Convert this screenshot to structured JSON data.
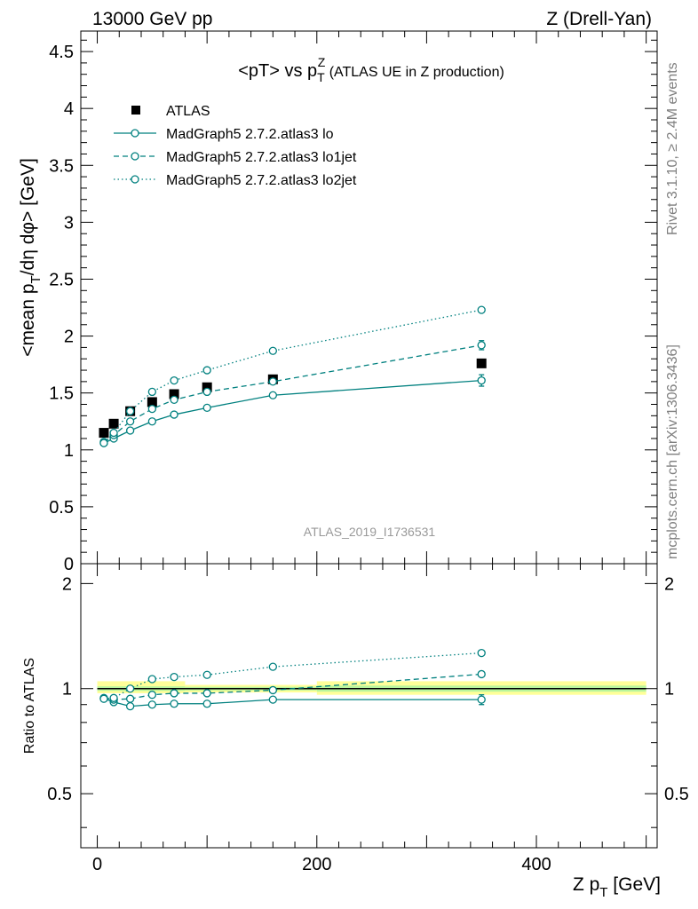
{
  "header": {
    "left": "13000 GeV pp",
    "right": "Z (Drell-Yan)"
  },
  "side_labels": {
    "rivet": "Rivet 3.1.10, ≥ 2.4M events",
    "mcplots": "mcplots.cern.ch [arXiv:1306.3436]"
  },
  "analysis_id": "ATLAS_2019_I1736531",
  "chart_data": [
    {
      "type": "scatter",
      "panel": "main",
      "title_parts": {
        "main": "<pT> vs p",
        "sub": "T",
        "sup": "Z",
        "suffix": " (ATLAS UE in Z production)"
      },
      "ylabel_parts": {
        "a": "<mean p",
        "sub": "T",
        "b": "/dη dφ> [GeV]"
      },
      "xlim": [
        -15,
        510
      ],
      "ylim": [
        0,
        4.68
      ],
      "y_ticks": [
        0,
        0.5,
        1,
        1.5,
        2,
        2.5,
        3,
        3.5,
        4,
        4.5
      ],
      "y_tick_labels": [
        "0",
        "0.5",
        "1",
        "1.5",
        "2",
        "2.5",
        "3",
        "3.5",
        "4",
        "4.5"
      ],
      "legend_position": "top-left",
      "series": [
        {
          "name": "ATLAS",
          "style": "data",
          "color": "#000000",
          "x": [
            6,
            15,
            30,
            50,
            70,
            100,
            160,
            350
          ],
          "y": [
            1.15,
            1.23,
            1.34,
            1.42,
            1.49,
            1.55,
            1.62,
            1.76
          ]
        },
        {
          "name": "MadGraph5 2.7.2.atlas3 lo",
          "style": "solid",
          "color": "#00807f",
          "x": [
            6,
            15,
            30,
            50,
            70,
            100,
            160,
            350
          ],
          "y": [
            1.06,
            1.1,
            1.17,
            1.25,
            1.31,
            1.37,
            1.48,
            1.61
          ],
          "err": [
            0.02,
            0.02,
            0.02,
            0.02,
            0.02,
            0.02,
            0.02,
            0.05
          ]
        },
        {
          "name": "MadGraph5 2.7.2.atlas3 lo1jet",
          "style": "dashed",
          "color": "#00807f",
          "x": [
            6,
            15,
            30,
            50,
            70,
            100,
            160,
            350
          ],
          "y": [
            1.07,
            1.13,
            1.25,
            1.36,
            1.44,
            1.51,
            1.6,
            1.92
          ],
          "err": [
            0.02,
            0.02,
            0.02,
            0.02,
            0.02,
            0.02,
            0.02,
            0.04
          ]
        },
        {
          "name": "MadGraph5 2.7.2.atlas3 lo2jet",
          "style": "dotted",
          "color": "#00807f",
          "x": [
            6,
            15,
            30,
            50,
            70,
            100,
            160,
            350
          ],
          "y": [
            1.06,
            1.15,
            1.34,
            1.51,
            1.61,
            1.7,
            1.87,
            2.23
          ],
          "err": [
            0.02,
            0.02,
            0.02,
            0.02,
            0.02,
            0.02,
            0.02,
            0.03
          ]
        }
      ]
    },
    {
      "type": "scatter",
      "panel": "ratio",
      "ylabel": "Ratio to ATLAS",
      "xlabel_parts": {
        "a": "Z p",
        "sub": "T",
        "b": " [GeV]"
      },
      "xlim": [
        -15,
        510
      ],
      "ylim": [
        0.35,
        2.28
      ],
      "x_ticks": [
        0,
        200,
        400
      ],
      "x_tick_labels": [
        "0",
        "200",
        "400"
      ],
      "y_ticks": [
        0.5,
        1,
        2
      ],
      "y_tick_labels": [
        "0.5",
        "1",
        "2"
      ],
      "bands": [
        {
          "x0": 0,
          "x1": 80,
          "y0": 0.97,
          "y1": 1.05,
          "inner0": 0.985,
          "inner1": 1.015
        },
        {
          "x0": 80,
          "x1": 200,
          "y0": 0.975,
          "y1": 1.025,
          "inner0": 0.988,
          "inner1": 1.012
        },
        {
          "x0": 200,
          "x1": 500,
          "y0": 0.96,
          "y1": 1.05,
          "inner0": 0.98,
          "inner1": 1.02
        }
      ],
      "series": [
        {
          "name": "MadGraph5 2.7.2.atlas3 lo",
          "style": "solid",
          "color": "#00807f",
          "x": [
            6,
            15,
            30,
            50,
            70,
            100,
            160,
            350
          ],
          "y": [
            0.937,
            0.915,
            0.89,
            0.9,
            0.905,
            0.905,
            0.93,
            0.93
          ],
          "err": [
            0.01,
            0.01,
            0.01,
            0.01,
            0.01,
            0.01,
            0.01,
            0.03
          ]
        },
        {
          "name": "MadGraph5 2.7.2.atlas3 lo1jet",
          "style": "dashed",
          "color": "#00807f",
          "x": [
            6,
            15,
            30,
            50,
            70,
            100,
            160,
            350
          ],
          "y": [
            0.94,
            0.93,
            0.935,
            0.96,
            0.97,
            0.97,
            0.99,
            1.1
          ],
          "err": [
            0.01,
            0.01,
            0.01,
            0.01,
            0.01,
            0.01,
            0.01,
            0.02
          ]
        },
        {
          "name": "MadGraph5 2.7.2.atlas3 lo2jet",
          "style": "dotted",
          "color": "#00807f",
          "x": [
            6,
            15,
            30,
            50,
            70,
            100,
            160,
            350
          ],
          "y": [
            0.935,
            0.94,
            1.0,
            1.065,
            1.08,
            1.095,
            1.155,
            1.265
          ],
          "err": [
            0.01,
            0.01,
            0.01,
            0.01,
            0.01,
            0.01,
            0.01,
            0.02
          ]
        }
      ]
    }
  ]
}
